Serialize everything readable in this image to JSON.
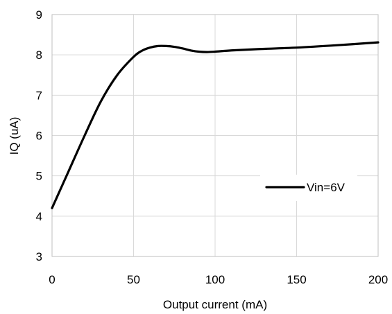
{
  "chart_data": {
    "type": "line",
    "xlabel": "Output current (mA)",
    "ylabel": "IQ (uA)",
    "xlim": [
      0,
      200
    ],
    "ylim": [
      3,
      9
    ],
    "x_ticks": [
      "0",
      "50",
      "100",
      "150",
      "200"
    ],
    "y_ticks": [
      "3",
      "4",
      "5",
      "6",
      "7",
      "8",
      "9"
    ],
    "grid": true,
    "legend_position": "right",
    "series": [
      {
        "name": "Vin=6V",
        "color": "#000000",
        "x": [
          0,
          5,
          10,
          20,
          30,
          40,
          50,
          55,
          60,
          65,
          70,
          75,
          80,
          85,
          90,
          95,
          100,
          110,
          125,
          150,
          175,
          200
        ],
        "y": [
          4.2,
          4.65,
          5.1,
          6.0,
          6.85,
          7.5,
          7.95,
          8.1,
          8.18,
          8.22,
          8.22,
          8.2,
          8.16,
          8.11,
          8.08,
          8.07,
          8.08,
          8.11,
          8.14,
          8.18,
          8.24,
          8.31
        ]
      }
    ]
  }
}
